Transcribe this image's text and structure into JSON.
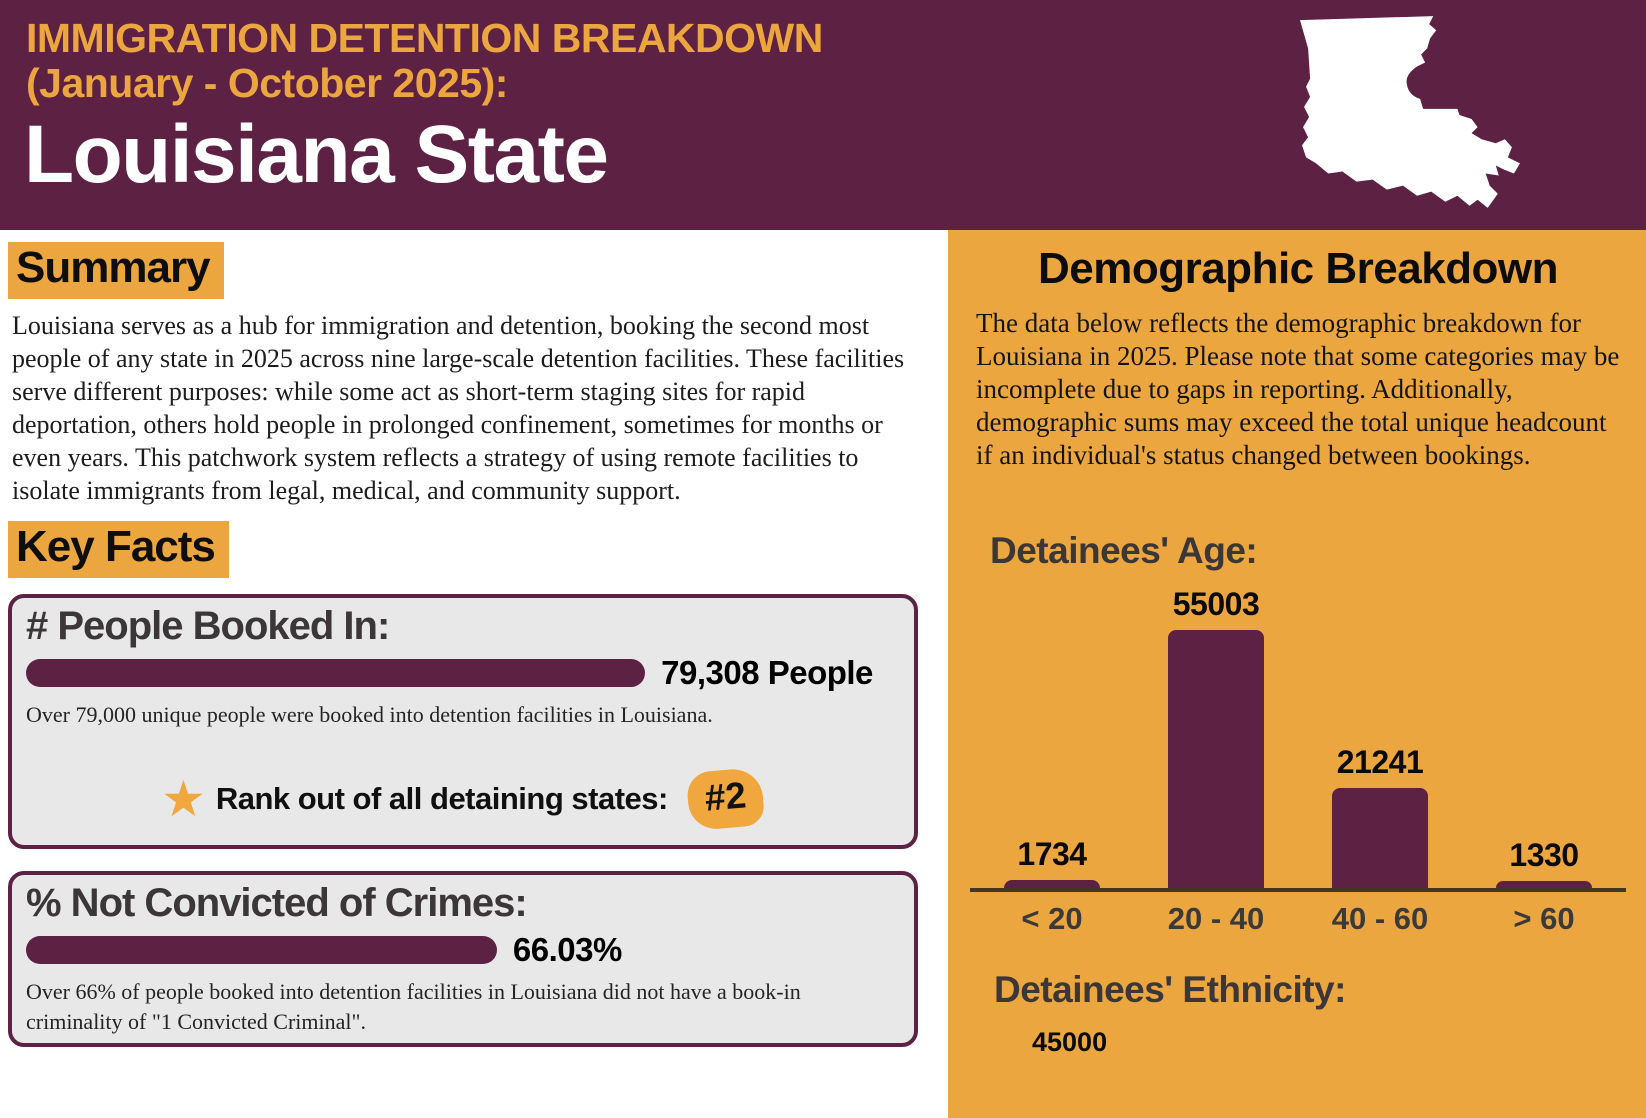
{
  "header": {
    "kicker_line1": "IMMIGRATION DETENTION BREAKDOWN",
    "kicker_line2": "(January - October 2025):",
    "title": "Louisiana State"
  },
  "summary": {
    "heading": "Summary",
    "body": "Louisiana serves as a hub for immigration and detention, booking the second most people of any state in 2025 across nine large-scale detention facilities. These facilities serve different purposes: while some act as short-term staging sites for rapid deportation, others hold people in prolonged confinement, sometimes for months or even years. This patchwork system reflects a strategy of using remote facilities to isolate immigrants from legal, medical, and community support."
  },
  "key_facts": {
    "heading": "Key Facts",
    "booked": {
      "title": "# People Booked In:",
      "value_label": "79,308 People",
      "bar_width_pct": 71,
      "description": "Over 79,000 unique people were booked into detention facilities in Louisiana.",
      "rank_label": "Rank out of all detaining states:",
      "rank_value": "#2"
    },
    "not_convicted": {
      "title": "% Not Convicted of Crimes:",
      "value_label": "66.03%",
      "bar_width_pct": 54,
      "description": "Over 66% of people booked into detention facilities in Louisiana did not have a book-in criminality of \"1 Convicted Criminal\"."
    }
  },
  "demographics": {
    "heading": "Demographic Breakdown",
    "intro": "The data below reflects the demographic breakdown for Louisiana in 2025. Please note that some categories may be incomplete due to gaps in reporting. Additionally, demographic sums may exceed the total unique headcount if an individual's status changed between bookings.",
    "age_chart_title": "Detainees' Age:",
    "ethnicity_chart_title": "Detainees' Ethnicity:",
    "ethnicity_visible_tick": "45000"
  },
  "chart_data": [
    {
      "type": "bar",
      "title": "Detainees' Age:",
      "categories": [
        "< 20",
        "20 - 40",
        "40 - 60",
        "> 60"
      ],
      "values": [
        1734,
        55003,
        21241,
        1330
      ],
      "bar_color": "#5d2144",
      "data_labels": true,
      "y_axis_visible": false,
      "grid": false,
      "legend": false
    },
    {
      "type": "bar",
      "title": "Detainees' Ethnicity:",
      "note": "chart cut off at bottom of image; only one y-axis tick label visible",
      "visible_tick_labels": [
        "45000"
      ]
    },
    {
      "type": "progress-bars",
      "items": [
        {
          "label": "# People Booked In:",
          "value_label": "79,308 People"
        },
        {
          "label": "% Not Convicted of Crimes:",
          "value_label": "66.03%"
        }
      ]
    }
  ],
  "icons": {
    "star": "★",
    "louisiana_map": "louisiana-state-silhouette"
  },
  "colors": {
    "maroon": "#5d2144",
    "orange": "#eca63f",
    "badge_orange": "#f0a73d",
    "box_gray": "#e9e8e8",
    "dark_heading": "#3b3637",
    "axis": "#423723"
  }
}
